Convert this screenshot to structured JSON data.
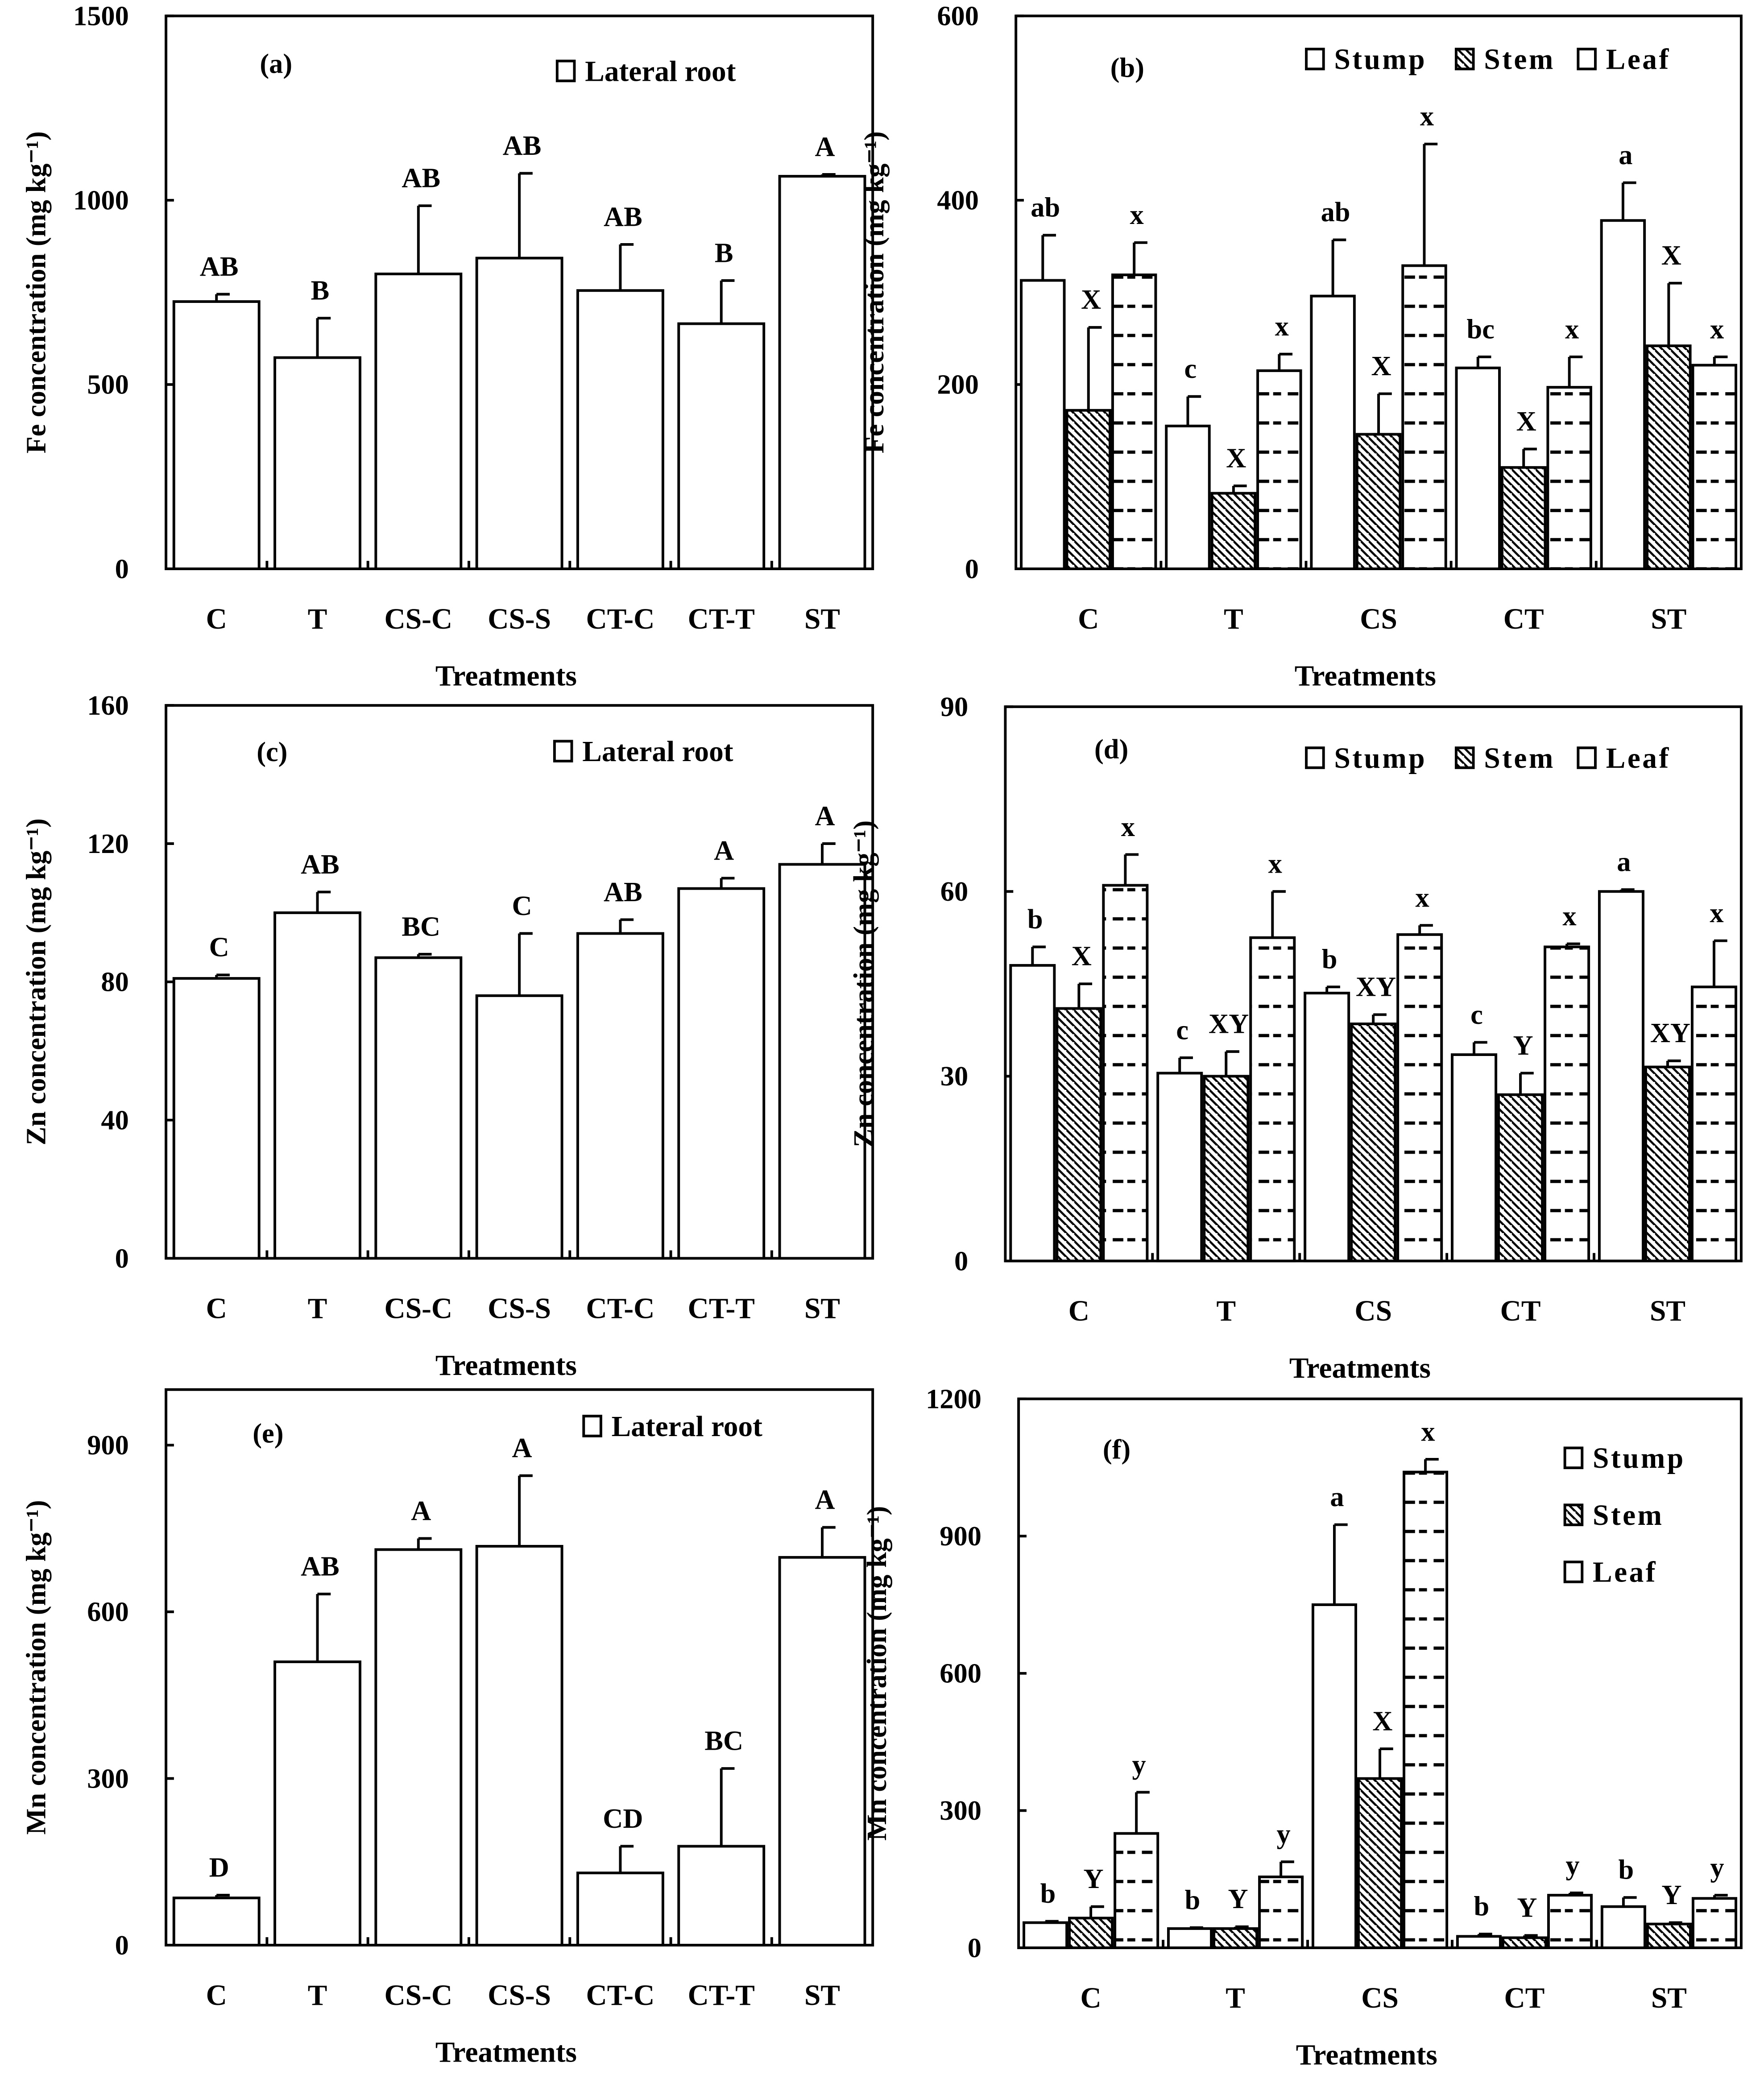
{
  "chart_data": [
    {
      "id": "a",
      "type": "bar",
      "panel_label": "(a)",
      "categories": [
        "C",
        "T",
        "CS-C",
        "CS-S",
        "CT-C",
        "CT-T",
        "ST"
      ],
      "series": [
        {
          "name": "Lateral root",
          "pattern": "empty",
          "values": [
            725,
            573,
            800,
            843,
            755,
            665,
            1065
          ],
          "err_top": [
            745,
            680,
            985,
            1073,
            880,
            782,
            1070
          ],
          "letters": [
            "AB",
            "B",
            "AB",
            "AB",
            "AB",
            "B",
            "A"
          ]
        }
      ],
      "xlabel": "Treatments",
      "ylabel": "Fe concentration (mg kg⁻¹)",
      "ylim": [
        0,
        1500
      ],
      "yticks": [
        0,
        500,
        1000,
        1500
      ],
      "legend": "top-right",
      "grid": false
    },
    {
      "id": "b",
      "type": "bar",
      "panel_label": "(b)",
      "categories": [
        "C",
        "T",
        "CS",
        "CT",
        "ST"
      ],
      "series": [
        {
          "name": "Stump",
          "pattern": "empty",
          "values": [
            313,
            155,
            296,
            218,
            378
          ],
          "err_top": [
            362,
            187,
            357,
            230,
            419
          ],
          "letters": [
            "ab",
            "c",
            "ab",
            "bc",
            "a"
          ]
        },
        {
          "name": "Stem",
          "pattern": "hatch",
          "values": [
            172,
            82,
            146,
            110,
            242
          ],
          "err_top": [
            262,
            90,
            190,
            130,
            310
          ],
          "letters": [
            "X",
            "X",
            "X",
            "X",
            "X"
          ]
        },
        {
          "name": "Leaf",
          "pattern": "dash",
          "values": [
            319,
            215,
            329,
            197,
            221
          ],
          "err_top": [
            354,
            233,
            461,
            230,
            230
          ],
          "letters": [
            "x",
            "x",
            "x",
            "x",
            "x"
          ]
        }
      ],
      "xlabel": "Treatments",
      "ylabel": "Fe concentration (mg kg⁻¹)",
      "ylim": [
        0,
        600
      ],
      "yticks": [
        0,
        200,
        400,
        600
      ],
      "legend": "top-right",
      "grid": false
    },
    {
      "id": "c",
      "type": "bar",
      "panel_label": "(c)",
      "categories": [
        "C",
        "T",
        "CS-C",
        "CS-S",
        "CT-C",
        "CT-T",
        "ST"
      ],
      "series": [
        {
          "name": "Lateral root",
          "pattern": "empty",
          "values": [
            81,
            100,
            87,
            76,
            94,
            107,
            114
          ],
          "err_top": [
            82,
            106,
            88,
            94,
            98,
            110,
            120
          ],
          "letters": [
            "C",
            "AB",
            "BC",
            "C",
            "AB",
            "A",
            "A"
          ]
        }
      ],
      "xlabel": "Treatments",
      "ylabel": "Zn concentration (mg kg⁻¹)",
      "ylim": [
        0,
        160
      ],
      "yticks": [
        0,
        40,
        80,
        120,
        160
      ],
      "legend": "top-right",
      "grid": false
    },
    {
      "id": "d",
      "type": "bar",
      "panel_label": "(d)",
      "categories": [
        "C",
        "T",
        "CS",
        "CT",
        "ST"
      ],
      "series": [
        {
          "name": "Stump",
          "pattern": "empty",
          "values": [
            48,
            30.5,
            43.5,
            33.5,
            60
          ],
          "err_top": [
            51,
            33,
            44.5,
            35.5,
            60.3
          ],
          "letters": [
            "b",
            "c",
            "b",
            "c",
            "a"
          ]
        },
        {
          "name": "Stem",
          "pattern": "hatch",
          "values": [
            41,
            30,
            38.5,
            27,
            31.5
          ],
          "err_top": [
            45,
            34,
            40,
            30.5,
            32.5
          ],
          "letters": [
            "X",
            "XY",
            "XY",
            "Y",
            "XY"
          ]
        },
        {
          "name": "Leaf",
          "pattern": "dash",
          "values": [
            61,
            52.5,
            53,
            51,
            44.5
          ],
          "err_top": [
            66,
            60,
            54.5,
            51.5,
            52
          ],
          "letters": [
            "x",
            "x",
            "x",
            "x",
            "x"
          ]
        }
      ],
      "xlabel": "Treatments",
      "ylabel": "Zn concentration (mg kg⁻¹)",
      "ylim": [
        0,
        90
      ],
      "yticks": [
        0,
        30,
        60,
        90
      ],
      "legend": "top-right",
      "grid": false
    },
    {
      "id": "e",
      "type": "bar",
      "panel_label": "(e)",
      "categories": [
        "C",
        "T",
        "CS-C",
        "CS-S",
        "CT-C",
        "CT-T",
        "ST"
      ],
      "series": [
        {
          "name": "Lateral root",
          "pattern": "empty",
          "values": [
            85,
            510,
            712,
            718,
            130,
            178,
            698
          ],
          "err_top": [
            90,
            632,
            732,
            845,
            178,
            318,
            752
          ],
          "letters": [
            "D",
            "AB",
            "A",
            "A",
            "CD",
            "BC",
            "A"
          ]
        }
      ],
      "xlabel": "Treatments",
      "ylabel": "Mn concentration (mg kg⁻¹)",
      "ylim": [
        0,
        1000
      ],
      "yticks": [
        0,
        300,
        600,
        900
      ],
      "legend": "top-right",
      "grid": false
    },
    {
      "id": "f",
      "type": "bar",
      "panel_label": "(f)",
      "categories": [
        "C",
        "T",
        "CS",
        "CT",
        "ST"
      ],
      "series": [
        {
          "name": "Stump",
          "pattern": "empty",
          "values": [
            55,
            42,
            750,
            25,
            90
          ],
          "err_top": [
            58,
            44,
            925,
            30,
            110
          ],
          "letters": [
            "b",
            "b",
            "a",
            "b",
            "b"
          ]
        },
        {
          "name": "Stem",
          "pattern": "hatch",
          "values": [
            65,
            42,
            370,
            22,
            52
          ],
          "err_top": [
            90,
            46,
            435,
            27,
            55
          ],
          "letters": [
            "Y",
            "Y",
            "X",
            "Y",
            "Y"
          ]
        },
        {
          "name": "Leaf",
          "pattern": "dash",
          "values": [
            250,
            155,
            1040,
            115,
            108
          ],
          "err_top": [
            340,
            188,
            1068,
            120,
            115
          ],
          "letters": [
            "y",
            "y",
            "x",
            "y",
            "y"
          ]
        }
      ],
      "xlabel": "Treatments",
      "ylabel": "Mn concentration (mg kg⁻¹)",
      "ylim": [
        0,
        1200
      ],
      "yticks": [
        0,
        300,
        600,
        900,
        1200
      ],
      "legend": "right",
      "grid": false
    }
  ]
}
